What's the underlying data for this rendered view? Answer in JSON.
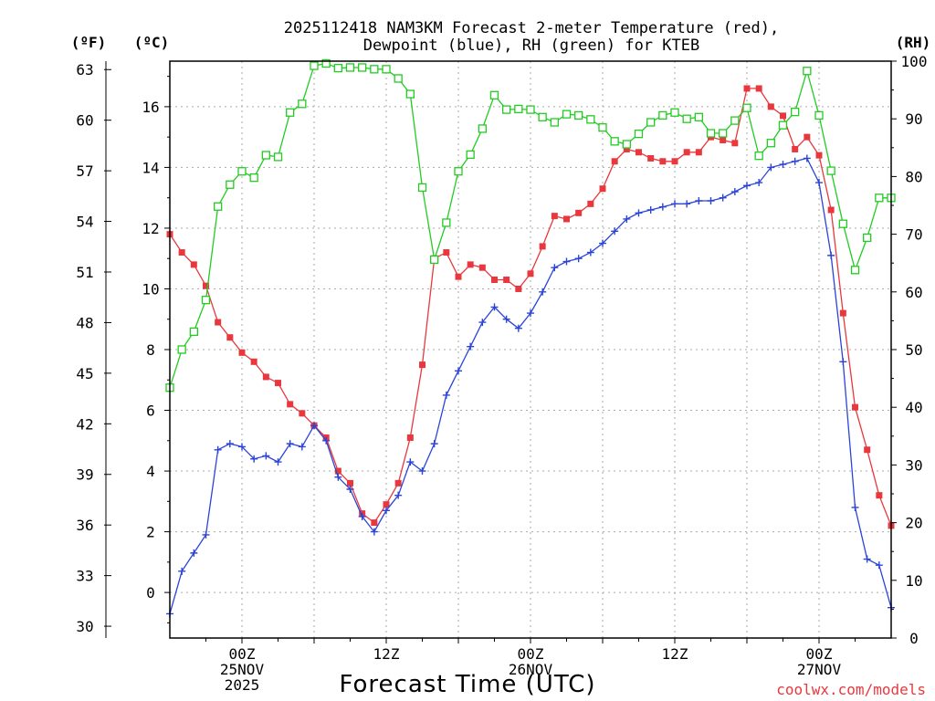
{
  "chart_data": {
    "type": "line",
    "title": "2025112418 NAM3KM Forecast 2-meter Temperature (red),",
    "subtitle": "Dewpoint (blue), RH (green) for KTEB",
    "xlabel": "Forecast Time (UTC)",
    "y_left_outer_unit": "(ºF)",
    "y_left_inner_unit": "(ºC)",
    "y_right_unit": "(RH)",
    "credit": "coolwx.com/models",
    "x_hours_range": [
      18,
      78
    ],
    "y_celsius_range": [
      -1.5,
      17.5
    ],
    "y_rh_range": [
      0,
      100
    ],
    "grid": true,
    "x_tick_labels": [
      {
        "hour": 24,
        "lines": [
          "00Z",
          "25NOV",
          "2025"
        ]
      },
      {
        "hour": 36,
        "lines": [
          "12Z"
        ]
      },
      {
        "hour": 48,
        "lines": [
          "00Z",
          "26NOV"
        ]
      },
      {
        "hour": 60,
        "lines": [
          "12Z"
        ]
      },
      {
        "hour": 72,
        "lines": [
          "00Z",
          "27NOV"
        ]
      }
    ],
    "y_celsius_ticks": [
      "0",
      "2",
      "4",
      "6",
      "8",
      "10",
      "12",
      "14",
      "16"
    ],
    "y_fahrenheit_ticks": [
      "30",
      "33",
      "36",
      "39",
      "42",
      "45",
      "48",
      "51",
      "54",
      "57",
      "60",
      "63"
    ],
    "y_rh_ticks": [
      "0",
      "10",
      "20",
      "30",
      "40",
      "50",
      "60",
      "70",
      "80",
      "90",
      "100"
    ],
    "x": [
      18,
      19,
      20,
      21,
      22,
      23,
      24,
      25,
      26,
      27,
      28,
      29,
      30,
      31,
      32,
      33,
      34,
      35,
      36,
      37,
      38,
      39,
      40,
      41,
      42,
      43,
      44,
      45,
      46,
      47,
      48,
      49,
      50,
      51,
      52,
      53,
      54,
      55,
      56,
      57,
      58,
      59,
      60,
      61,
      62,
      63,
      64,
      65,
      66,
      67,
      68,
      69,
      70,
      71,
      72,
      73,
      74,
      75,
      76,
      77,
      78
    ],
    "series": [
      {
        "name": "Temperature",
        "color": "#e8383d",
        "marker": "square",
        "values": [
          11.8,
          11.2,
          10.8,
          10.1,
          8.9,
          8.4,
          7.9,
          7.6,
          7.1,
          6.9,
          6.2,
          5.9,
          5.5,
          5.1,
          4.0,
          3.6,
          2.6,
          2.3,
          2.9,
          3.6,
          5.1,
          7.5,
          11.0,
          11.2,
          10.4,
          10.8,
          10.7,
          10.3,
          10.3,
          10.0,
          10.5,
          11.4,
          12.4,
          12.3,
          12.5,
          12.8,
          13.3,
          14.2,
          14.6,
          14.5,
          14.3,
          14.2,
          14.2,
          14.5,
          14.5,
          15.0,
          14.9,
          14.8,
          16.6,
          16.6,
          16.0,
          15.7,
          14.6,
          15.0,
          14.4,
          12.6,
          9.2,
          6.1,
          4.7,
          3.2,
          2.2
        ]
      },
      {
        "name": "Dewpoint",
        "color": "#2b44d8",
        "marker": "plus",
        "values": [
          -0.7,
          0.7,
          1.3,
          1.9,
          4.7,
          4.9,
          4.8,
          4.4,
          4.5,
          4.3,
          4.9,
          4.8,
          5.5,
          5.0,
          3.8,
          3.4,
          2.5,
          2.0,
          2.7,
          3.2,
          4.3,
          4.0,
          4.9,
          6.5,
          7.3,
          8.1,
          8.9,
          9.4,
          9.0,
          8.7,
          9.2,
          9.9,
          10.7,
          10.9,
          11.0,
          11.2,
          11.5,
          11.9,
          12.3,
          12.5,
          12.6,
          12.7,
          12.8,
          12.8,
          12.9,
          12.9,
          13.0,
          13.2,
          13.4,
          13.5,
          14.0,
          14.1,
          14.2,
          14.3,
          13.5,
          11.1,
          7.6,
          2.8,
          1.1,
          0.9,
          -0.5
        ]
      },
      {
        "name": "RH",
        "color": "#22cc22",
        "marker": "open-square",
        "axis": "right",
        "values": [
          43.4,
          50.0,
          53.1,
          58.6,
          74.8,
          78.6,
          80.9,
          79.8,
          83.7,
          83.4,
          91.1,
          92.6,
          99.2,
          99.6,
          98.8,
          98.9,
          98.9,
          98.6,
          98.6,
          97.0,
          94.3,
          78.1,
          65.6,
          72.0,
          80.9,
          83.8,
          88.3,
          94.1,
          91.6,
          91.7,
          91.6,
          90.3,
          89.4,
          90.8,
          90.6,
          89.9,
          88.5,
          86.1,
          85.6,
          87.4,
          89.4,
          90.6,
          91.1,
          90.0,
          90.3,
          87.5,
          87.5,
          89.7,
          91.9,
          83.6,
          85.8,
          88.9,
          91.2,
          98.3,
          90.6,
          81.0,
          71.8,
          63.8,
          69.4,
          76.3,
          76.3
        ]
      }
    ]
  }
}
